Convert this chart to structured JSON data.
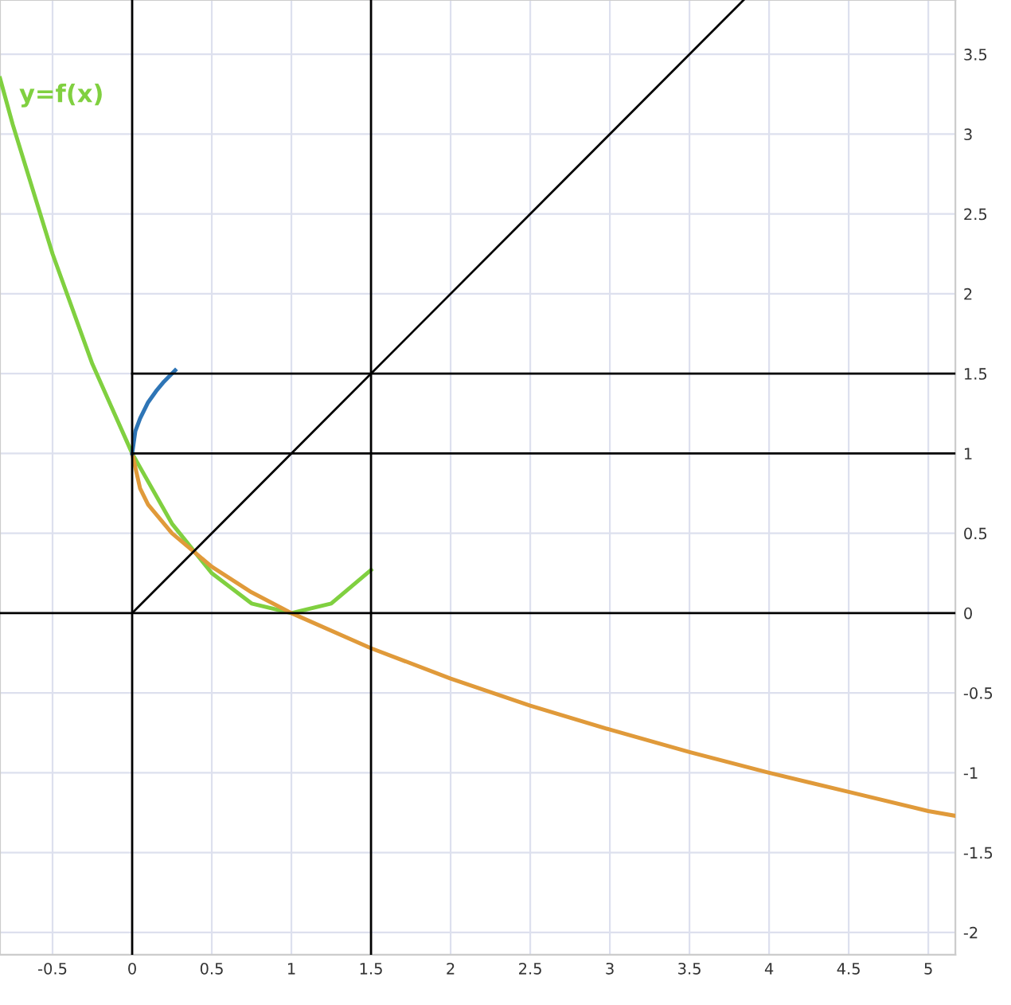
{
  "chart_data": {
    "type": "line",
    "xlim": [
      -0.83,
      5.17
    ],
    "ylim": [
      -2.14,
      3.84
    ],
    "xticks": [
      -0.5,
      0,
      0.5,
      1,
      1.5,
      2,
      2.5,
      3,
      3.5,
      4,
      4.5,
      5
    ],
    "yticks": [
      -2,
      -1.5,
      -1,
      -0.5,
      0,
      0.5,
      1,
      1.5,
      2,
      2.5,
      3,
      3.5
    ],
    "grid": true,
    "legend": false,
    "marker": "none",
    "line_style": "solid",
    "series": [
      {
        "name": "y=f(x)",
        "color": "#80d040",
        "x": [
          -0.83,
          -0.75,
          -0.5,
          -0.25,
          0,
          0.25,
          0.5,
          0.75,
          1,
          1.25,
          1.5
        ],
        "values": [
          3.35,
          3.06,
          2.25,
          1.56,
          1,
          0.56,
          0.25,
          0.06,
          0,
          0.06,
          0.27
        ]
      },
      {
        "color": "#e09a3a",
        "x": [
          0,
          0.05,
          0.1,
          0.25,
          0.5,
          0.75,
          1,
          1.5,
          2,
          2.5,
          3,
          3.5,
          4,
          4.5,
          5,
          5.17
        ],
        "values": [
          1,
          0.78,
          0.68,
          0.5,
          0.29,
          0.13,
          0,
          -0.22,
          -0.41,
          -0.58,
          -0.73,
          -0.87,
          -1,
          -1.12,
          -1.24,
          -1.27
        ]
      },
      {
        "color": "#2e75b6",
        "x": [
          0,
          0.02,
          0.05,
          0.1,
          0.15,
          0.2,
          0.27
        ],
        "values": [
          1,
          1.14,
          1.22,
          1.32,
          1.39,
          1.45,
          1.52
        ]
      },
      {
        "color": "#000000",
        "x": [
          0,
          3.84
        ],
        "values": [
          0,
          3.84
        ]
      },
      {
        "color": "#000000",
        "x": [
          0,
          5.17
        ],
        "values": [
          1,
          1
        ]
      },
      {
        "color": "#000000",
        "x": [
          0,
          5.17
        ],
        "values": [
          1.5,
          1.5
        ]
      },
      {
        "color": "#000000",
        "x": [
          1.5,
          1.5
        ],
        "values": [
          -2.14,
          3.84
        ]
      },
      {
        "color": "#000000",
        "x": [
          -0.83,
          5.17
        ],
        "values": [
          0,
          0
        ]
      },
      {
        "color": "#000000",
        "x": [
          0,
          0
        ],
        "values": [
          -2.14,
          3.84
        ]
      }
    ]
  }
}
